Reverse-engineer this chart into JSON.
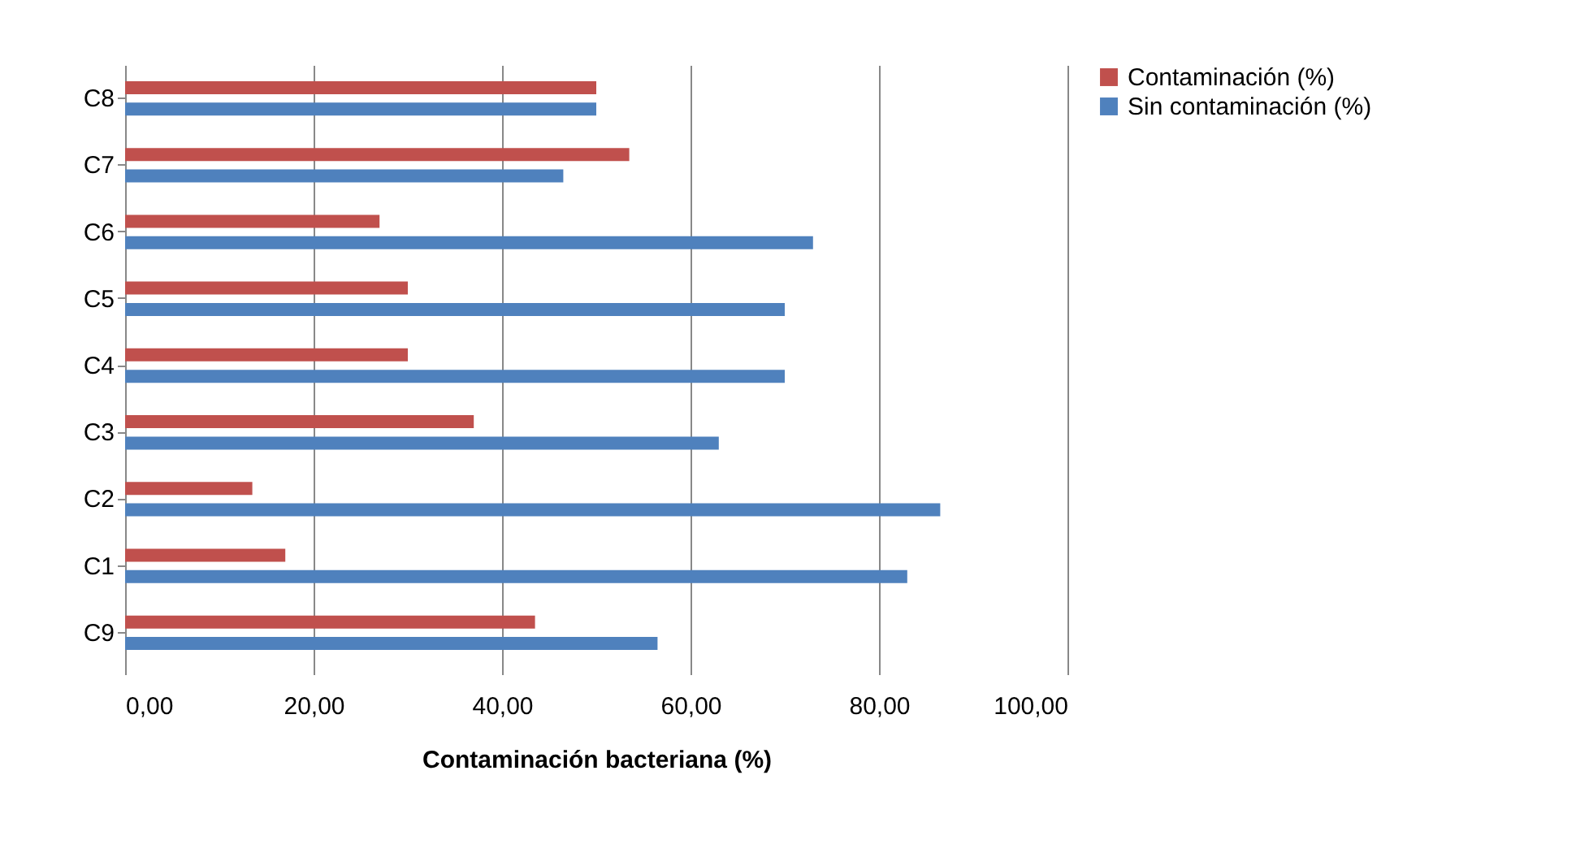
{
  "chart_data": {
    "type": "bar",
    "orientation": "horizontal",
    "xlabel": "Contaminación bacteriana (%)",
    "categories": [
      "C8",
      "C7",
      "C6",
      "C5",
      "C4",
      "C3",
      "C2",
      "C1",
      "C9"
    ],
    "series": [
      {
        "name": "Contaminación (%)",
        "color": "#c0504d",
        "values": [
          50,
          53.5,
          27,
          30,
          30,
          37,
          13.5,
          17,
          43.5
        ]
      },
      {
        "name": "Sin contaminación (%)",
        "color": "#4f81bd",
        "values": [
          50,
          46.5,
          73,
          70,
          70,
          63,
          86.5,
          83,
          56.5
        ]
      }
    ],
    "xlim": [
      0,
      100
    ],
    "xticks": [
      {
        "value": 0,
        "label": "0,00"
      },
      {
        "value": 20,
        "label": "20,00"
      },
      {
        "value": 40,
        "label": "40,00"
      },
      {
        "value": 60,
        "label": "60,00"
      },
      {
        "value": 80,
        "label": "80,00"
      },
      {
        "value": 100,
        "label": "100,00"
      }
    ],
    "grid": "x",
    "legend": "right"
  }
}
